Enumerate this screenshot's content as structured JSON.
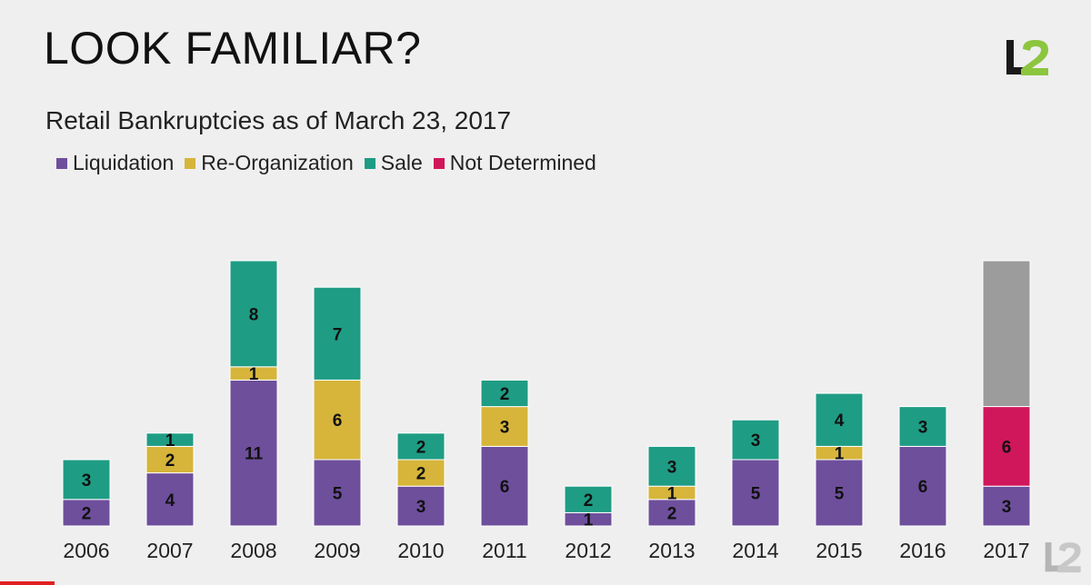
{
  "slide": {
    "title": "LOOK FAMILIAR?",
    "subtitle": "Retail Bankruptcies as of March 23, 2017",
    "logo_text": "L2"
  },
  "colors": {
    "liquidation": "#6e4f9c",
    "reorganization": "#d6b53a",
    "sale": "#1f9c84",
    "not_determined": "#d0175b",
    "projection": "#9c9c9c",
    "logo_dark": "#1a1a1a",
    "logo_green": "#8cc63f"
  },
  "chart_data": {
    "type": "bar",
    "stacked": true,
    "title": "Retail Bankruptcies as of March 23, 2017",
    "categories": [
      "2006",
      "2007",
      "2008",
      "2009",
      "2010",
      "2011",
      "2012",
      "2013",
      "2014",
      "2015",
      "2016",
      "2017"
    ],
    "series": [
      {
        "name": "Liquidation",
        "color": "#6e4f9c",
        "values": [
          2,
          4,
          11,
          5,
          3,
          6,
          1,
          2,
          5,
          5,
          6,
          3
        ]
      },
      {
        "name": "Re-Organization",
        "color": "#d6b53a",
        "values": [
          0,
          2,
          1,
          6,
          2,
          3,
          0,
          1,
          0,
          1,
          0,
          0
        ]
      },
      {
        "name": "Sale",
        "color": "#1f9c84",
        "values": [
          3,
          1,
          8,
          7,
          2,
          2,
          2,
          3,
          3,
          4,
          3,
          0
        ]
      },
      {
        "name": "Not Determined",
        "color": "#d0175b",
        "values": [
          0,
          0,
          0,
          0,
          0,
          0,
          0,
          0,
          0,
          0,
          0,
          6
        ]
      }
    ],
    "projection": {
      "category": "2017",
      "color": "#9c9c9c",
      "top_total": 20
    },
    "legend_position": "top-left",
    "grid": false,
    "ylim": [
      0,
      20
    ]
  }
}
